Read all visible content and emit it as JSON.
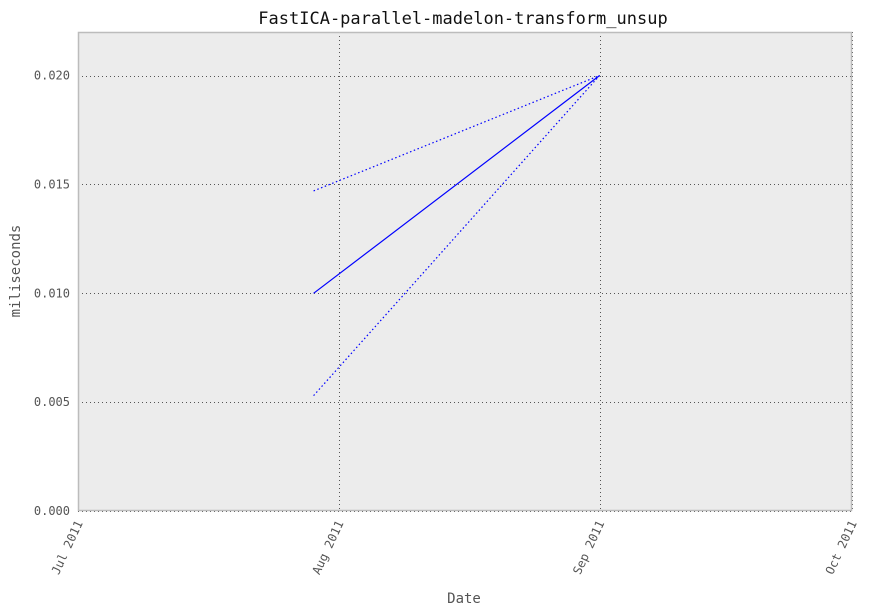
{
  "chart_data": {
    "type": "line",
    "title": "FastICA-parallel-madelon-transform_unsup",
    "xlabel": "Date",
    "ylabel": "miliseconds",
    "x_axis_type": "date",
    "xlim": [
      "2011-07-01",
      "2011-10-01"
    ],
    "ylim": [
      0.0,
      0.022
    ],
    "x_ticks": [
      {
        "value": "2011-07-01",
        "label": "Jul 2011"
      },
      {
        "value": "2011-08-01",
        "label": "Aug 2011"
      },
      {
        "value": "2011-09-01",
        "label": "Sep 2011"
      },
      {
        "value": "2011-10-01",
        "label": "Oct 2011"
      }
    ],
    "y_ticks": [
      {
        "value": 0.0,
        "label": "0.000"
      },
      {
        "value": 0.005,
        "label": "0.005"
      },
      {
        "value": 0.01,
        "label": "0.010"
      },
      {
        "value": 0.015,
        "label": "0.015"
      },
      {
        "value": 0.02,
        "label": "0.020"
      }
    ],
    "grid": true,
    "tick_label_rotation_x": -65,
    "series": [
      {
        "style": "solid",
        "color": "#0000ff",
        "x": [
          "2011-07-29",
          "2011-09-01"
        ],
        "y": [
          0.01,
          0.02
        ]
      },
      {
        "style": "dotted",
        "color": "#0000ff",
        "x": [
          "2011-07-29",
          "2011-09-01"
        ],
        "y": [
          0.0147,
          0.02
        ]
      },
      {
        "style": "dotted",
        "color": "#0000ff",
        "x": [
          "2011-07-29",
          "2011-09-01"
        ],
        "y": [
          0.0053,
          0.02
        ]
      }
    ]
  },
  "colors": {
    "plot_background": "#ececec",
    "axes_border": "#bcbcbc",
    "grid": "#555555",
    "series": "#0000ff"
  }
}
